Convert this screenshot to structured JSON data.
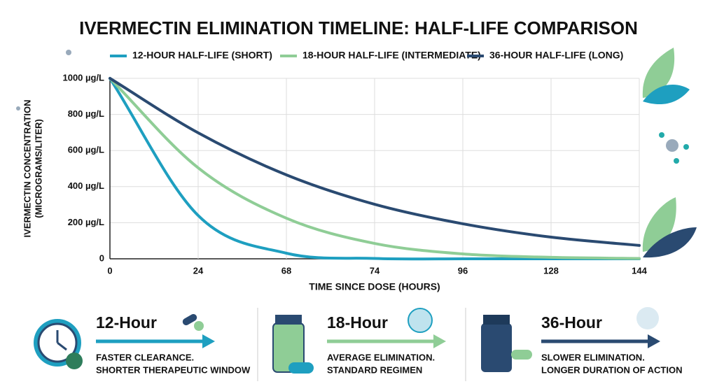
{
  "chart_data": {
    "type": "line",
    "title": "IVERMECTIN ELIMINATION TIMELINE: HALF-LIFE COMPARISON",
    "x_label": "TIME SINCE DOSE (HOURS)",
    "y_label": [
      "IVERMECTIN CONCENTRATION",
      "(MICROGRAMS/LITER)"
    ],
    "categories": [
      "0",
      "24",
      "68",
      "74",
      "96",
      "128",
      "144"
    ],
    "series": [
      {
        "name": "12-HOUR HALF-LIFE (SHORT)",
        "color": "#1e9fc0",
        "values": [
          1000,
          240,
          31,
          2,
          0,
          0,
          0
        ]
      },
      {
        "name": "18-HOUR HALF-LIFE (INTERMEDIATE)",
        "color": "#8fcd96",
        "values": [
          1000,
          504,
          225,
          85,
          27,
          8,
          2
        ]
      },
      {
        "name": "36-HOUR HALF-LIFE (LONG)",
        "color": "#2a4a71",
        "values": [
          1000,
          698,
          465,
          302,
          194,
          120,
          74
        ]
      }
    ],
    "ylim": [
      0,
      1000
    ],
    "yticks": [
      0,
      {
        "value": 200,
        "label": "200 µg/L"
      },
      {
        "value": 400,
        "label": "400 µg/L"
      },
      {
        "value": 600,
        "label": "600 µg/L"
      },
      {
        "value": 800,
        "label": "800 µg/L"
      },
      {
        "value": 1000,
        "label": "1000 µg/L"
      }
    ],
    "grid": true
  },
  "panels": [
    {
      "title": "12-Hour",
      "lines": [
        "FASTER CLEARANCE.",
        "SHORTER THERAPEUTIC WINDOW"
      ]
    },
    {
      "title": "18-Hour",
      "lines": [
        "AVERAGE ELIMINATION.",
        "STANDARD REGIMEN"
      ]
    },
    {
      "title": "36-Hour",
      "lines": [
        "SLOWER ELIMINATION.",
        "LONGER DURATION OF ACTION"
      ]
    }
  ]
}
